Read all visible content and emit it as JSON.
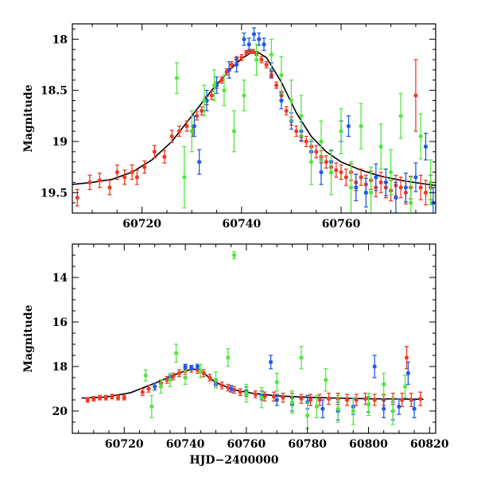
{
  "chart_data": [
    {
      "type": "scatter",
      "panel": "top",
      "xlabel": "",
      "ylabel": "Magnitude",
      "xlim": [
        60706,
        60779
      ],
      "ylim": [
        19.7,
        17.85
      ],
      "y_inverted": true,
      "xticks": [
        60720,
        60740,
        60760
      ],
      "xtick_labels": [
        "60720",
        "60740",
        "60760"
      ],
      "yticks": [
        18,
        18.5,
        19,
        19.5
      ],
      "ytick_labels": [
        "18",
        "18.5",
        "19",
        "19.5"
      ],
      "grid": false,
      "legend": "none",
      "series": [
        {
          "color": "#ef3b24",
          "x": [
            60707,
            60709.5,
            60711.5,
            60713.5,
            60715,
            60716.5,
            60718,
            60719,
            60720.5,
            60722.5,
            60724.5,
            60726,
            60727.5,
            60729,
            60730.2,
            60731,
            60732,
            60733,
            60734,
            60735,
            60736,
            60737,
            60738,
            60739,
            60740,
            60741,
            60741.6,
            60742.3,
            60743,
            60744,
            60745,
            60746,
            60747,
            60748,
            60749,
            60750,
            60751,
            60752,
            60753,
            60754,
            60755,
            60756,
            60757,
            60758,
            60759,
            60760,
            60761,
            60762,
            60763,
            60764,
            60765,
            60766,
            60767,
            60768,
            60769,
            60770,
            60771,
            60772,
            60773,
            60774,
            60775,
            60776,
            60777,
            60778
          ],
          "y": [
            19.55,
            19.4,
            19.38,
            19.45,
            19.3,
            19.35,
            19.3,
            19.35,
            19.25,
            19.1,
            19.15,
            18.95,
            18.9,
            18.85,
            18.9,
            18.75,
            18.7,
            18.6,
            18.55,
            18.45,
            18.4,
            18.32,
            18.25,
            18.2,
            18.18,
            18.13,
            18.12,
            18.12,
            18.14,
            18.2,
            18.25,
            18.35,
            18.45,
            18.55,
            18.7,
            18.8,
            18.9,
            18.95,
            19.0,
            19.05,
            19.1,
            19.15,
            19.2,
            19.25,
            19.28,
            19.3,
            19.35,
            19.3,
            19.4,
            19.35,
            19.42,
            19.38,
            19.45,
            19.4,
            19.45,
            19.48,
            19.43,
            19.45,
            19.5,
            19.45,
            18.55,
            19.45,
            19.5,
            19.45
          ],
          "err": [
            0.08,
            0.07,
            0.07,
            0.07,
            0.07,
            0.07,
            0.07,
            0.07,
            0.06,
            0.06,
            0.06,
            0.06,
            0.05,
            0.05,
            0.05,
            0.04,
            0.04,
            0.04,
            0.04,
            0.03,
            0.03,
            0.03,
            0.03,
            0.03,
            0.03,
            0.02,
            0.02,
            0.02,
            0.02,
            0.03,
            0.03,
            0.03,
            0.03,
            0.04,
            0.04,
            0.04,
            0.05,
            0.05,
            0.05,
            0.05,
            0.06,
            0.06,
            0.06,
            0.06,
            0.07,
            0.07,
            0.08,
            0.08,
            0.08,
            0.08,
            0.09,
            0.09,
            0.09,
            0.1,
            0.1,
            0.1,
            0.1,
            0.1,
            0.11,
            0.11,
            0.35,
            0.12,
            0.12,
            0.12
          ]
        },
        {
          "color": "#1e5ce6",
          "x": [
            60730.5,
            60731.5,
            60733,
            60735,
            60737.5,
            60739,
            60740.5,
            60741.5,
            60742.5,
            60743.5,
            60744.5,
            60746,
            60748,
            60750,
            60752,
            60754,
            60756,
            60758,
            60760,
            60761.5,
            60763,
            60765,
            60767,
            60769,
            60771,
            60773,
            60775,
            60777,
            60778.5
          ],
          "y": [
            18.85,
            19.2,
            18.6,
            18.45,
            18.3,
            18.25,
            18.0,
            18.05,
            17.95,
            18.0,
            18.05,
            18.3,
            18.6,
            18.8,
            18.9,
            19.1,
            19.3,
            19.2,
            18.9,
            18.85,
            19.45,
            19.5,
            19.35,
            19.4,
            19.55,
            19.45,
            19.35,
            19.05,
            19.6
          ],
          "err": [
            0.1,
            0.12,
            0.1,
            0.08,
            0.08,
            0.07,
            0.06,
            0.06,
            0.06,
            0.06,
            0.06,
            0.07,
            0.08,
            0.08,
            0.09,
            0.1,
            0.12,
            0.11,
            0.1,
            0.1,
            0.13,
            0.14,
            0.13,
            0.13,
            0.15,
            0.14,
            0.14,
            0.13,
            0.15
          ]
        },
        {
          "color": "#4fe83d",
          "x": [
            60727,
            60728.5,
            60730,
            60732.5,
            60734.5,
            60736.5,
            60738.5,
            60740.5,
            60743,
            60746,
            60748,
            60750,
            60752,
            60754,
            60756,
            60758,
            60760,
            60762,
            60764,
            60766,
            60768,
            60770,
            60772,
            60774,
            60776,
            60778
          ],
          "y": [
            18.38,
            19.35,
            18.9,
            18.6,
            18.45,
            18.5,
            18.9,
            18.55,
            18.2,
            18.15,
            18.35,
            18.6,
            18.75,
            19.2,
            19.0,
            19.3,
            18.9,
            19.45,
            18.85,
            19.5,
            19.05,
            19.3,
            18.75,
            19.6,
            18.95,
            19.4
          ],
          "err": [
            0.15,
            0.3,
            0.2,
            0.15,
            0.15,
            0.15,
            0.2,
            0.15,
            0.15,
            0.15,
            0.18,
            0.2,
            0.2,
            0.22,
            0.2,
            0.22,
            0.22,
            0.25,
            0.22,
            0.25,
            0.22,
            0.22,
            0.22,
            0.25,
            0.22,
            0.22
          ]
        }
      ],
      "model_curve": {
        "color": "#000000",
        "x": [
          60706,
          60710,
          60714,
          60718,
          60722,
          60726,
          60730,
          60734,
          60738,
          60740,
          60742,
          60743,
          60745,
          60748,
          60751,
          60754,
          60757,
          60760,
          60764,
          60768,
          60772,
          60776,
          60779
        ],
        "y": [
          19.42,
          19.4,
          19.37,
          19.3,
          19.18,
          19.0,
          18.75,
          18.5,
          18.28,
          18.19,
          18.13,
          18.12,
          18.18,
          18.42,
          18.72,
          18.95,
          19.1,
          19.2,
          19.28,
          19.34,
          19.38,
          19.41,
          19.43
        ]
      }
    },
    {
      "type": "scatter",
      "panel": "bottom",
      "xlabel": "HJD−2400000",
      "ylabel": "Magnitude",
      "xlim": [
        60703,
        60822
      ],
      "ylim": [
        21.0,
        12.5
      ],
      "y_inverted": true,
      "xticks": [
        60720,
        60740,
        60760,
        60780,
        60800,
        60820
      ],
      "xtick_labels": [
        "60720",
        "60740",
        "60760",
        "60780",
        "60800",
        "60820"
      ],
      "yticks": [
        14,
        16,
        18,
        20
      ],
      "ytick_labels": [
        "14",
        "16",
        "18",
        "20"
      ],
      "grid": false,
      "legend": "none",
      "series": [
        {
          "color": "#ef3b24",
          "x": [
            60708,
            60710,
            60712,
            60714,
            60716,
            60718,
            60720,
            60726,
            60728,
            60730,
            60732,
            60734,
            60736,
            60738,
            60740,
            60742,
            60744,
            60746,
            60748,
            60750,
            60752,
            60754,
            60756,
            60758,
            60760,
            60763,
            60766,
            60769,
            60772,
            60775,
            60778,
            60781,
            60784,
            60787,
            60790,
            60793,
            60796,
            60799,
            60802,
            60805,
            60808,
            60811,
            60812.5,
            60814,
            60817
          ],
          "y": [
            19.5,
            19.45,
            19.4,
            19.4,
            19.35,
            19.4,
            19.4,
            19.15,
            19.0,
            18.9,
            18.75,
            18.6,
            18.45,
            18.3,
            18.2,
            18.1,
            18.15,
            18.3,
            18.5,
            18.7,
            18.85,
            18.95,
            19.05,
            19.15,
            19.2,
            19.25,
            19.35,
            19.35,
            19.4,
            19.4,
            19.45,
            19.5,
            19.5,
            19.45,
            19.45,
            19.5,
            19.5,
            19.45,
            19.5,
            19.5,
            19.45,
            19.5,
            17.6,
            19.5,
            19.45
          ],
          "err": [
            0.1,
            0.1,
            0.1,
            0.1,
            0.1,
            0.1,
            0.1,
            0.15,
            0.15,
            0.15,
            0.15,
            0.15,
            0.15,
            0.15,
            0.15,
            0.15,
            0.15,
            0.15,
            0.15,
            0.15,
            0.15,
            0.15,
            0.15,
            0.15,
            0.15,
            0.15,
            0.2,
            0.2,
            0.2,
            0.2,
            0.2,
            0.25,
            0.25,
            0.25,
            0.25,
            0.25,
            0.25,
            0.25,
            0.25,
            0.25,
            0.25,
            0.3,
            0.5,
            0.3,
            0.3
          ]
        },
        {
          "color": "#1e5ce6",
          "x": [
            60730,
            60735,
            60740,
            60742,
            60744,
            60750,
            60755,
            60760,
            60765,
            60768,
            60770,
            60775,
            60780,
            60785,
            60790,
            60795,
            60800,
            60802,
            60805,
            60808,
            60810,
            60813,
            60815
          ],
          "y": [
            18.9,
            18.5,
            18.0,
            18.05,
            18.0,
            18.8,
            19.0,
            19.1,
            19.3,
            17.8,
            19.5,
            19.7,
            19.6,
            19.9,
            20.0,
            19.8,
            19.7,
            18.0,
            19.9,
            20.0,
            19.8,
            18.3,
            19.9
          ],
          "err": [
            0.15,
            0.12,
            0.1,
            0.1,
            0.1,
            0.15,
            0.15,
            0.18,
            0.2,
            0.3,
            0.25,
            0.3,
            0.3,
            0.4,
            0.4,
            0.35,
            0.35,
            0.5,
            0.4,
            0.4,
            0.35,
            0.5,
            0.4
          ]
        },
        {
          "color": "#4fe83d",
          "x": [
            60727,
            60729,
            60732,
            60735,
            60737,
            60740,
            60745,
            60750,
            60754,
            60756,
            60760,
            60765,
            60770,
            60775,
            60778,
            60780,
            60783,
            60786,
            60790,
            60795,
            60800,
            60805,
            60808,
            60812
          ],
          "y": [
            18.4,
            19.8,
            18.9,
            18.6,
            17.4,
            18.5,
            18.2,
            18.6,
            17.6,
            13.0,
            19.2,
            19.4,
            18.7,
            19.6,
            17.6,
            20.2,
            19.8,
            18.6,
            19.9,
            20.0,
            19.7,
            18.8,
            20.0,
            18.9
          ],
          "err": [
            0.25,
            0.5,
            0.3,
            0.3,
            0.4,
            0.3,
            0.3,
            0.35,
            0.4,
            0.15,
            0.4,
            0.45,
            0.4,
            0.5,
            0.5,
            0.6,
            0.5,
            0.5,
            0.6,
            0.6,
            0.5,
            0.5,
            0.6,
            0.5
          ]
        }
      ],
      "model_curve": {
        "color": "#000000",
        "x": [
          60706,
          60714,
          60722,
          60730,
          60736,
          60740,
          60743,
          60746,
          60750,
          60756,
          60762,
          60770,
          60780,
          60790,
          60800,
          60810,
          60818
        ],
        "y": [
          19.42,
          19.37,
          19.18,
          18.75,
          18.4,
          18.19,
          18.12,
          18.3,
          18.72,
          19.05,
          19.2,
          19.32,
          19.38,
          19.42,
          19.45,
          19.46,
          19.47
        ]
      }
    }
  ]
}
